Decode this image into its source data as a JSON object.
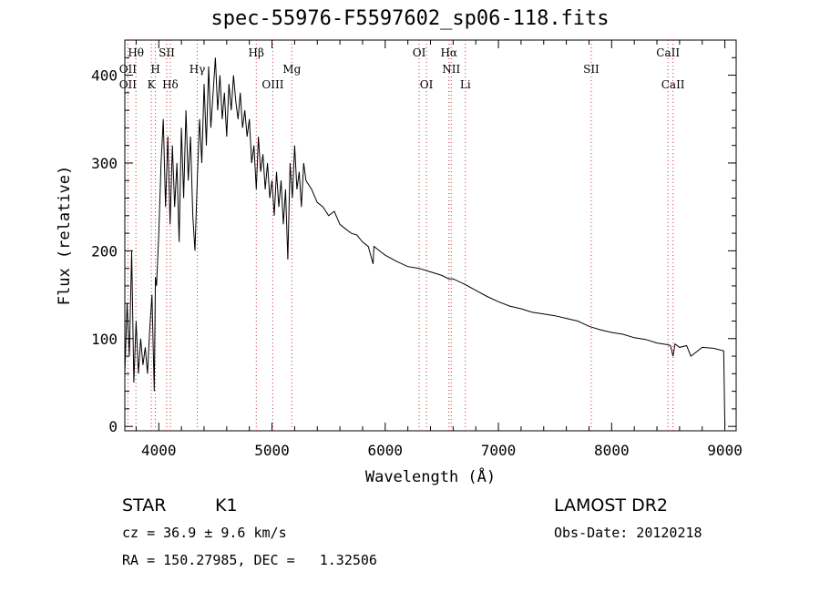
{
  "chart_data": {
    "type": "line",
    "title": "spec-55976-F5597602_sp06-118.fits",
    "xlabel": "Wavelength (Å)",
    "ylabel": "Flux (relative)",
    "xlim": [
      3700,
      9100
    ],
    "ylim": [
      -5,
      440
    ],
    "xticks": [
      4000,
      5000,
      6000,
      7000,
      8000,
      9000
    ],
    "yticks": [
      0,
      100,
      200,
      300,
      400
    ],
    "grid": false,
    "line_color": "#000000",
    "marker_color": "#cc3333",
    "series": [
      {
        "x": [
          3700,
          3720,
          3740,
          3760,
          3780,
          3800,
          3820,
          3840,
          3860,
          3880,
          3900,
          3920,
          3940,
          3960,
          3970,
          3980,
          4000,
          4020,
          4040,
          4060,
          4080,
          4100,
          4120,
          4140,
          4160,
          4180,
          4200,
          4220,
          4240,
          4260,
          4280,
          4300,
          4320,
          4340,
          4360,
          4380,
          4400,
          4420,
          4440,
          4460,
          4480,
          4500,
          4520,
          4540,
          4560,
          4580,
          4600,
          4620,
          4640,
          4660,
          4680,
          4700,
          4720,
          4740,
          4760,
          4780,
          4800,
          4820,
          4840,
          4861,
          4880,
          4900,
          4920,
          4940,
          4960,
          4980,
          5000,
          5020,
          5040,
          5060,
          5080,
          5100,
          5120,
          5140,
          5160,
          5180,
          5200,
          5220,
          5240,
          5260,
          5280,
          5300,
          5350,
          5400,
          5450,
          5500,
          5550,
          5600,
          5650,
          5700,
          5750,
          5800,
          5850,
          5893,
          5900,
          5950,
          6000,
          6100,
          6200,
          6300,
          6400,
          6500,
          6563,
          6600,
          6700,
          6800,
          6900,
          7000,
          7100,
          7200,
          7300,
          7400,
          7500,
          7600,
          7700,
          7800,
          7900,
          8000,
          8100,
          8200,
          8300,
          8400,
          8498,
          8520,
          8542,
          8560,
          8600,
          8662,
          8700,
          8800,
          8900,
          8990,
          9000
        ],
        "y": [
          60,
          140,
          80,
          200,
          50,
          120,
          60,
          100,
          70,
          90,
          60,
          110,
          150,
          40,
          170,
          160,
          220,
          300,
          350,
          250,
          330,
          230,
          320,
          250,
          300,
          210,
          340,
          260,
          360,
          280,
          330,
          240,
          200,
          280,
          350,
          300,
          390,
          320,
          410,
          340,
          380,
          420,
          360,
          400,
          350,
          380,
          330,
          390,
          360,
          400,
          370,
          350,
          380,
          340,
          360,
          330,
          350,
          300,
          320,
          270,
          330,
          290,
          310,
          270,
          300,
          260,
          280,
          240,
          290,
          250,
          280,
          230,
          270,
          190,
          300,
          260,
          320,
          270,
          290,
          250,
          300,
          280,
          270,
          255,
          250,
          240,
          245,
          230,
          225,
          220,
          218,
          210,
          205,
          185,
          205,
          200,
          195,
          188,
          182,
          180,
          176,
          172,
          168,
          168,
          162,
          155,
          148,
          142,
          137,
          134,
          130,
          128,
          126,
          123,
          120,
          114,
          110,
          107,
          105,
          101,
          99,
          95,
          93,
          92,
          80,
          94,
          90,
          92,
          80,
          90,
          89,
          86,
          0
        ]
      }
    ],
    "line_labels": [
      {
        "name": "Hθ",
        "x": 3798,
        "row": 0
      },
      {
        "name": "SII",
        "x": 4070,
        "row": 0
      },
      {
        "name": "OII",
        "x": 3727,
        "row": 1
      },
      {
        "name": "H",
        "x": 3970,
        "row": 1
      },
      {
        "name": "Hγ",
        "x": 4340,
        "row": 1
      },
      {
        "name": "OII",
        "x": 3727,
        "row": 2
      },
      {
        "name": "K",
        "x": 3934,
        "row": 2
      },
      {
        "name": "Hδ",
        "x": 4102,
        "row": 2
      },
      {
        "name": "Hβ",
        "x": 4861,
        "row": 0
      },
      {
        "name": "Mg",
        "x": 5175,
        "row": 1
      },
      {
        "name": "OIII",
        "x": 5007,
        "row": 2
      },
      {
        "name": "OI",
        "x": 6300,
        "row": 0
      },
      {
        "name": "Hα",
        "x": 6563,
        "row": 0
      },
      {
        "name": "NII",
        "x": 6583,
        "row": 1
      },
      {
        "name": "OI",
        "x": 6364,
        "row": 2
      },
      {
        "name": "Li",
        "x": 6708,
        "row": 2
      },
      {
        "name": "SII",
        "x": 7820,
        "row": 1
      },
      {
        "name": "CaII",
        "x": 8498,
        "row": 0
      },
      {
        "name": "CaII",
        "x": 8542,
        "row": 2
      }
    ],
    "marker_lines": [
      3727,
      3798,
      3934,
      3970,
      4070,
      4102,
      4340,
      4861,
      5007,
      5175,
      6300,
      6364,
      6563,
      6583,
      6708,
      7820,
      8498,
      8542
    ]
  },
  "info": {
    "object_class": "STAR",
    "subclass": "K1",
    "cz": "cz = 36.9 ± 9.6 km/s",
    "coords": "RA = 150.27985, DEC =   1.32506",
    "survey": "LAMOST DR2",
    "obs_date": "Obs-Date: 20120218"
  }
}
